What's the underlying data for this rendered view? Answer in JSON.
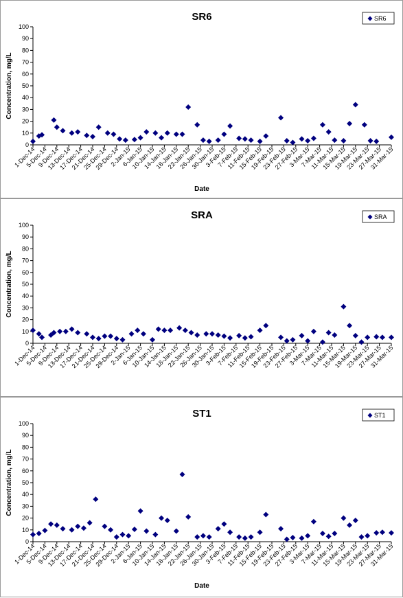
{
  "chart_data": [
    {
      "type": "scatter",
      "title": "SR6",
      "xlabel": "Date",
      "ylabel": "Concentration, mg/L",
      "ylim": [
        0,
        100
      ],
      "yticks": [
        "0",
        "10",
        "20",
        "30",
        "40",
        "50",
        "60",
        "70",
        "80",
        "90",
        "100"
      ],
      "xlim": [
        "1-Dec-14",
        "31-Mar-15"
      ],
      "xticks": [
        "1-Dec-14",
        "5-Dec-14",
        "9-Dec-14",
        "13-Dec-14",
        "17-Dec-14",
        "21-Dec-14",
        "25-Dec-14",
        "29-Dec-14",
        "2-Jan-15",
        "6-Jan-15",
        "10-Jan-15",
        "14-Jan-15",
        "18-Jan-15",
        "22-Jan-15",
        "26-Jan-15",
        "30-Jan-15",
        "3-Feb-15",
        "7-Feb-15",
        "11-Feb-15",
        "15-Feb-15",
        "19-Feb-15",
        "23-Feb-15",
        "27-Feb-15",
        "3-Mar-15",
        "7-Mar-15",
        "11-Mar-15",
        "15-Mar-15",
        "19-Mar-15",
        "23-Mar-15",
        "27-Mar-15",
        "31-Mar-15"
      ],
      "legend": "top-right",
      "marker_color": "#00007f",
      "series": [
        {
          "name": "SR6",
          "x": [
            "1-Dec-14",
            "3-Dec-14",
            "4-Dec-14",
            "8-Dec-14",
            "9-Dec-14",
            "11-Dec-14",
            "14-Dec-14",
            "16-Dec-14",
            "19-Dec-14",
            "21-Dec-14",
            "23-Dec-14",
            "26-Dec-14",
            "28-Dec-14",
            "30-Dec-14",
            "1-Jan-15",
            "4-Jan-15",
            "6-Jan-15",
            "8-Jan-15",
            "11-Jan-15",
            "13-Jan-15",
            "15-Jan-15",
            "18-Jan-15",
            "20-Jan-15",
            "22-Jan-15",
            "25-Jan-15",
            "27-Jan-15",
            "29-Jan-15",
            "1-Feb-15",
            "3-Feb-15",
            "5-Feb-15",
            "8-Feb-15",
            "10-Feb-15",
            "12-Feb-15",
            "15-Feb-15",
            "17-Feb-15",
            "22-Feb-15",
            "24-Feb-15",
            "26-Feb-15",
            "1-Mar-15",
            "3-Mar-15",
            "5-Mar-15",
            "8-Mar-15",
            "10-Mar-15",
            "12-Mar-15",
            "15-Mar-15",
            "17-Mar-15",
            "19-Mar-15",
            "22-Mar-15",
            "24-Mar-15",
            "26-Mar-15",
            "31-Mar-15"
          ],
          "y": [
            3,
            7.5,
            8.5,
            21,
            15,
            12,
            10,
            11,
            8,
            7,
            15,
            10,
            9,
            5,
            4,
            4.5,
            6,
            11,
            10,
            6,
            10,
            9,
            9,
            32,
            17,
            4,
            3,
            4,
            9,
            16,
            5.5,
            5,
            4,
            3,
            7.5,
            23,
            3.5,
            2,
            5,
            3.5,
            5.5,
            17,
            11,
            4,
            3.5,
            18,
            34,
            17,
            3.5,
            3,
            6.5
          ]
        }
      ]
    },
    {
      "type": "scatter",
      "title": "SRA",
      "xlabel": "",
      "ylabel": "Concentration, mg/L",
      "ylim": [
        0,
        100
      ],
      "yticks": [
        "0",
        "10",
        "20",
        "30",
        "40",
        "50",
        "60",
        "70",
        "80",
        "90",
        "100"
      ],
      "xlim": [
        "1-Dec-14",
        "31-Mar-15"
      ],
      "xticks": [
        "1-Dec-14",
        "5-Dec-14",
        "9-Dec-14",
        "13-Dec-14",
        "17-Dec-14",
        "21-Dec-14",
        "25-Dec-14",
        "29-Dec-14",
        "2-Jan-15",
        "6-Jan-15",
        "10-Jan-15",
        "14-Jan-15",
        "18-Jan-15",
        "22-Jan-15",
        "26-Jan-15",
        "30-Jan-15",
        "3-Feb-15",
        "7-Feb-15",
        "11-Feb-15",
        "15-Feb-15",
        "19-Feb-15",
        "23-Feb-15",
        "27-Feb-15",
        "3-Mar-15",
        "7-Mar-15",
        "11-Mar-15",
        "15-Mar-15",
        "19-Mar-15",
        "23-Mar-15",
        "27-Mar-15",
        "31-Mar-15"
      ],
      "legend": "top-right",
      "marker_color": "#00007f",
      "series": [
        {
          "name": "SRA",
          "x": [
            "1-Dec-14",
            "3-Dec-14",
            "4-Dec-14",
            "7-Dec-14",
            "8-Dec-14",
            "10-Dec-14",
            "12-Dec-14",
            "14-Dec-14",
            "16-Dec-14",
            "19-Dec-14",
            "21-Dec-14",
            "23-Dec-14",
            "25-Dec-14",
            "27-Dec-14",
            "29-Dec-14",
            "31-Dec-14",
            "3-Jan-15",
            "5-Jan-15",
            "7-Jan-15",
            "10-Jan-15",
            "12-Jan-15",
            "14-Jan-15",
            "16-Jan-15",
            "19-Jan-15",
            "21-Jan-15",
            "23-Jan-15",
            "25-Jan-15",
            "28-Jan-15",
            "30-Jan-15",
            "1-Feb-15",
            "3-Feb-15",
            "5-Feb-15",
            "8-Feb-15",
            "10-Feb-15",
            "12-Feb-15",
            "15-Feb-15",
            "17-Feb-15",
            "22-Feb-15",
            "24-Feb-15",
            "26-Feb-15",
            "1-Mar-15",
            "3-Mar-15",
            "5-Mar-15",
            "8-Mar-15",
            "10-Mar-15",
            "12-Mar-15",
            "15-Mar-15",
            "17-Mar-15",
            "19-Mar-15",
            "21-Mar-15",
            "23-Mar-15",
            "26-Mar-15",
            "28-Mar-15",
            "31-Mar-15"
          ],
          "y": [
            11,
            8,
            5,
            7,
            9,
            10,
            10,
            12,
            9,
            8,
            5,
            4,
            6,
            6,
            4,
            3,
            8,
            11,
            8,
            3,
            12,
            11,
            11,
            13,
            11,
            9,
            7,
            8,
            8,
            7,
            6,
            4.5,
            6.5,
            4.5,
            5.5,
            11,
            15,
            5,
            2,
            3,
            6.5,
            2,
            10,
            1,
            9,
            7,
            31,
            15,
            6.5,
            1,
            5,
            5.5,
            5,
            5
          ]
        }
      ]
    },
    {
      "type": "scatter",
      "title": "ST1",
      "xlabel": "Date",
      "ylabel": "Concentration, mg/L",
      "ylim": [
        0,
        100
      ],
      "yticks": [
        "0",
        "10",
        "20",
        "30",
        "40",
        "50",
        "60",
        "70",
        "80",
        "90",
        "100"
      ],
      "xlim": [
        "1-Dec-14",
        "31-Mar-15"
      ],
      "xticks": [
        "1-Dec-14",
        "5-Dec-14",
        "9-Dec-14",
        "13-Dec-14",
        "17-Dec-14",
        "21-Dec-14",
        "25-Dec-14",
        "29-Dec-14",
        "2-Jan-15",
        "6-Jan-15",
        "10-Jan-15",
        "14-Jan-15",
        "18-Jan-15",
        "22-Jan-15",
        "26-Jan-15",
        "30-Jan-15",
        "3-Feb-15",
        "7-Feb-15",
        "11-Feb-15",
        "15-Feb-15",
        "19-Feb-15",
        "23-Feb-15",
        "27-Feb-15",
        "3-Mar-15",
        "7-Mar-15",
        "11-Mar-15",
        "15-Mar-15",
        "19-Mar-15",
        "23-Mar-15",
        "27-Mar-15",
        "31-Mar-15"
      ],
      "legend": "top-right",
      "marker_color": "#00007f",
      "series": [
        {
          "name": "ST1",
          "x": [
            "1-Dec-14",
            "3-Dec-14",
            "5-Dec-14",
            "7-Dec-14",
            "9-Dec-14",
            "11-Dec-14",
            "14-Dec-14",
            "16-Dec-14",
            "18-Dec-14",
            "20-Dec-14",
            "22-Dec-14",
            "25-Dec-14",
            "27-Dec-14",
            "29-Dec-14",
            "31-Dec-14",
            "2-Jan-15",
            "4-Jan-15",
            "6-Jan-15",
            "8-Jan-15",
            "11-Jan-15",
            "13-Jan-15",
            "15-Jan-15",
            "18-Jan-15",
            "20-Jan-15",
            "22-Jan-15",
            "25-Jan-15",
            "27-Jan-15",
            "29-Jan-15",
            "1-Feb-15",
            "3-Feb-15",
            "5-Feb-15",
            "8-Feb-15",
            "10-Feb-15",
            "12-Feb-15",
            "15-Feb-15",
            "17-Feb-15",
            "22-Feb-15",
            "24-Feb-15",
            "26-Feb-15",
            "1-Mar-15",
            "3-Mar-15",
            "5-Mar-15",
            "8-Mar-15",
            "10-Mar-15",
            "12-Mar-15",
            "15-Mar-15",
            "17-Mar-15",
            "19-Mar-15",
            "21-Mar-15",
            "23-Mar-15",
            "26-Mar-15",
            "28-Mar-15",
            "31-Mar-15"
          ],
          "y": [
            6,
            7,
            9.5,
            15,
            14,
            11,
            10,
            13,
            11.5,
            16,
            36,
            13,
            10,
            4,
            6,
            5,
            10.5,
            26,
            9,
            6,
            20,
            18,
            9,
            57,
            21,
            4,
            5,
            4,
            11,
            15,
            8,
            4,
            3,
            4,
            8,
            23,
            11,
            2,
            3.5,
            3,
            5,
            17,
            7,
            4.5,
            7,
            20,
            14,
            18,
            4,
            5,
            7.5,
            8,
            7.5
          ]
        }
      ]
    }
  ]
}
